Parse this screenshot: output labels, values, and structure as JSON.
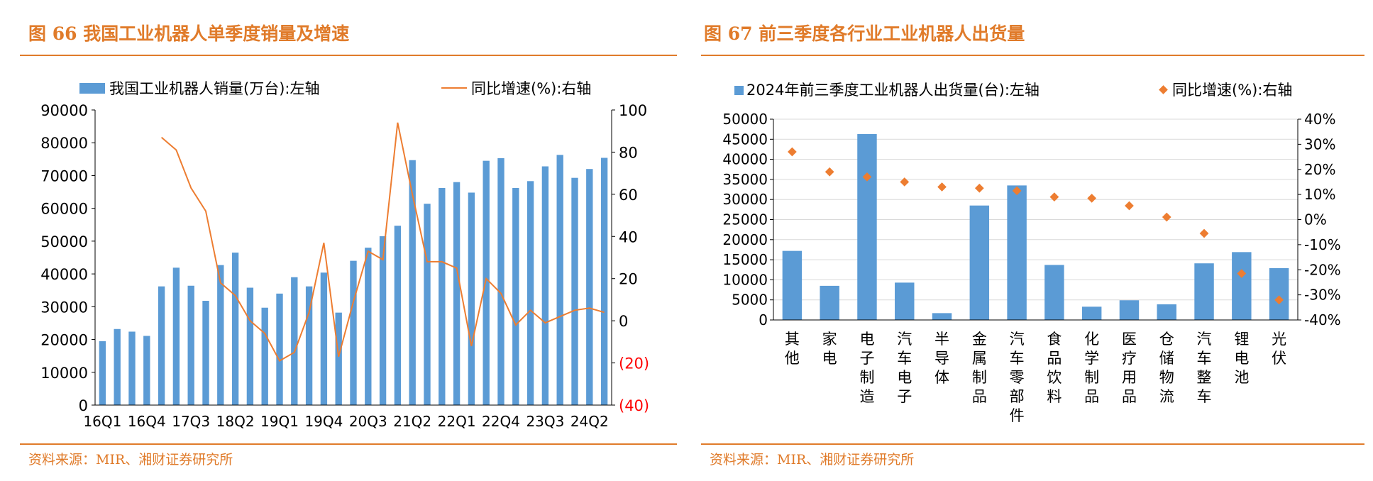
{
  "chart_data": [
    {
      "type": "bar",
      "title": "图 66 我国工业机器人单季度销量及增速",
      "source": "资料来源：MIR、湘财证券研究所",
      "legend": [
        "我国工业机器人销量(万台):左轴",
        "同比增速(%):右轴"
      ],
      "legend_position": "top",
      "categories": [
        "16Q1",
        "16Q2",
        "16Q3",
        "16Q4",
        "17Q1",
        "17Q2",
        "17Q3",
        "17Q4",
        "18Q1",
        "18Q2",
        "18Q3",
        "18Q4",
        "19Q1",
        "19Q2",
        "19Q3",
        "19Q4",
        "20Q1",
        "20Q2",
        "20Q3",
        "20Q4",
        "21Q1",
        "21Q2",
        "21Q3",
        "21Q4",
        "22Q1",
        "22Q2",
        "22Q3",
        "22Q4",
        "23Q1",
        "23Q2",
        "23Q3",
        "23Q4",
        "24Q1",
        "24Q2",
        "24Q3"
      ],
      "x_tick_labels": [
        "16Q1",
        "16Q4",
        "17Q3",
        "18Q2",
        "19Q1",
        "19Q4",
        "20Q3",
        "21Q2",
        "22Q1",
        "22Q4",
        "23Q3",
        "24Q2"
      ],
      "series": [
        {
          "name": "我国工业机器人销量(万台):左轴",
          "type": "bar",
          "axis": "left",
          "values": [
            19500,
            23200,
            22400,
            21100,
            36200,
            41900,
            36400,
            31800,
            42700,
            46500,
            35800,
            29700,
            34000,
            39000,
            36200,
            40400,
            28200,
            44000,
            48000,
            51500,
            54700,
            74700,
            61400,
            66200,
            68000,
            64800,
            74500,
            75300,
            66200,
            68300,
            72800,
            76300,
            69300,
            72000,
            75400
          ]
        },
        {
          "name": "同比增速(%):右轴",
          "type": "line",
          "axis": "right",
          "values": [
            null,
            null,
            null,
            null,
            87,
            81,
            63,
            52,
            18,
            12,
            0,
            -6,
            -19,
            -15,
            4,
            37,
            -17,
            9,
            33,
            29,
            94,
            60,
            28,
            28,
            25,
            -12,
            20,
            13,
            -2,
            5,
            -1,
            2,
            5,
            6,
            4
          ]
        }
      ],
      "ylim_left": [
        0,
        90000
      ],
      "yticks_left": [
        "0",
        "10000",
        "20000",
        "30000",
        "40000",
        "50000",
        "60000",
        "70000",
        "80000",
        "90000"
      ],
      "ylim_right": [
        -40,
        100
      ],
      "yticks_right": [
        "(40)",
        "(20)",
        "0",
        "20",
        "40",
        "60",
        "80",
        "100"
      ],
      "grid": false,
      "colors": {
        "bar": "#5b9bd5",
        "line": "#ed7d31",
        "negative_tick": "#ff0000",
        "accent": "#e07b2a"
      }
    },
    {
      "type": "bar",
      "title": "图 67 前三季度各行业工业机器人出货量",
      "source": "资料来源：MIR、湘财证券研究所",
      "legend": [
        "2024年前三季度工业机器人出货量(台):左轴",
        "同比增速(%):右轴"
      ],
      "legend_position": "top",
      "categories": [
        "其他",
        "家电",
        "电子制造",
        "汽车电子",
        "半导体",
        "金属制品",
        "汽车零部件",
        "食品饮料",
        "化学制品",
        "医疗用品",
        "仓储物流",
        "汽车整车",
        "锂电池",
        "光伏"
      ],
      "series": [
        {
          "name": "2024年前三季度工业机器人出货量(台):左轴",
          "type": "bar",
          "axis": "left",
          "values": [
            17200,
            8500,
            46300,
            9300,
            1700,
            28500,
            33500,
            13700,
            3300,
            4900,
            3900,
            14100,
            16900,
            12900
          ]
        },
        {
          "name": "同比增速(%):右轴",
          "type": "scatter",
          "axis": "right",
          "values": [
            27,
            19,
            17,
            15,
            13,
            12.5,
            11.5,
            9,
            8.5,
            5.5,
            1,
            -5.5,
            -21.5,
            -32
          ]
        }
      ],
      "ylim_left": [
        0,
        50000
      ],
      "yticks_left": [
        "0",
        "5000",
        "10000",
        "15000",
        "20000",
        "25000",
        "30000",
        "35000",
        "40000",
        "45000",
        "50000"
      ],
      "ylim_right": [
        -40,
        40
      ],
      "yticks_right": [
        "-40%",
        "-30%",
        "-20%",
        "-10%",
        "0%",
        "10%",
        "20%",
        "30%",
        "40%"
      ],
      "grid": true,
      "colors": {
        "bar": "#5b9bd5",
        "marker": "#ed7d31",
        "grid": "#d9d9d9",
        "accent": "#e07b2a"
      }
    }
  ]
}
